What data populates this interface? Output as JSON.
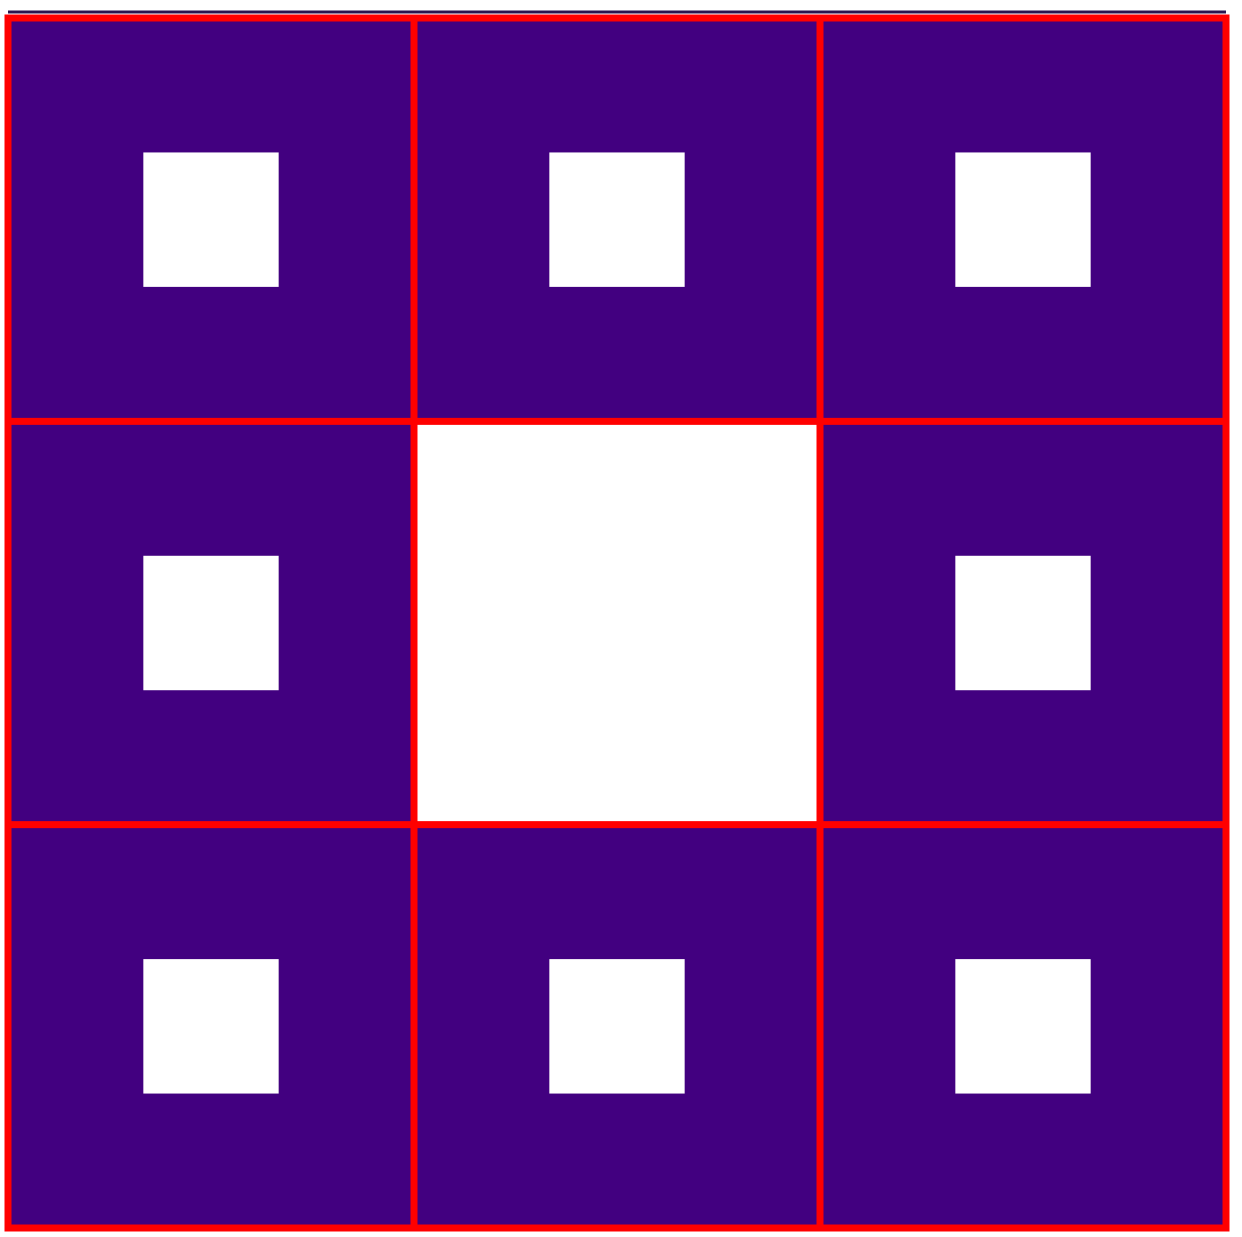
{
  "diagram": {
    "description_kind": "sierpinski-carpet-level-2",
    "grid": {
      "rows": 3,
      "cols": 3
    },
    "cells": [
      {
        "row": 0,
        "col": 0,
        "filled": true,
        "inner_hole": true
      },
      {
        "row": 0,
        "col": 1,
        "filled": true,
        "inner_hole": true
      },
      {
        "row": 0,
        "col": 2,
        "filled": true,
        "inner_hole": true
      },
      {
        "row": 1,
        "col": 0,
        "filled": true,
        "inner_hole": true
      },
      {
        "row": 1,
        "col": 1,
        "filled": false,
        "inner_hole": false
      },
      {
        "row": 1,
        "col": 2,
        "filled": true,
        "inner_hole": true
      },
      {
        "row": 2,
        "col": 0,
        "filled": true,
        "inner_hole": true
      },
      {
        "row": 2,
        "col": 1,
        "filled": true,
        "inner_hole": true
      },
      {
        "row": 2,
        "col": 2,
        "filled": true,
        "inner_hole": true
      }
    ],
    "colors": {
      "fill": "#420080",
      "hole": "#ffffff",
      "grid_line": "#ff0000",
      "top_edge": "#2a1650",
      "background": "#ffffff"
    }
  }
}
